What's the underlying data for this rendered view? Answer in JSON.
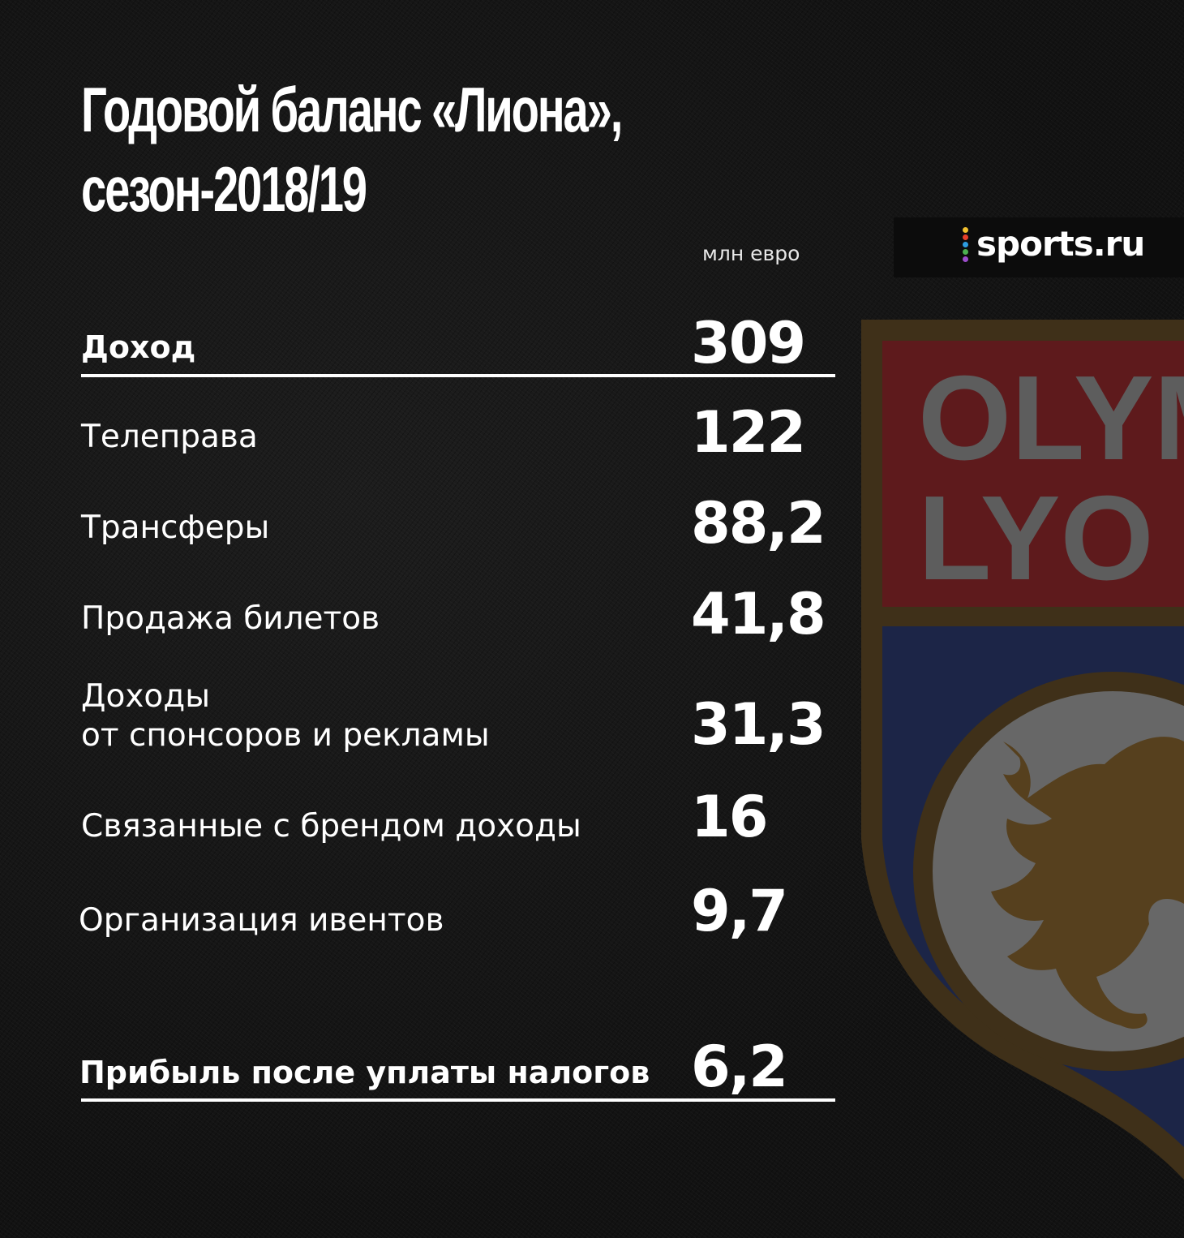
{
  "title": {
    "line1": "Годовой баланс «Лиона»,",
    "line2": "сезон-2018/19"
  },
  "units": "млн евро",
  "brand": {
    "name": "sports.ru",
    "dot_colors": [
      "#f2c12e",
      "#e8402a",
      "#2e9de0",
      "#4caf50",
      "#9c4dcc"
    ]
  },
  "revenue": {
    "label": "Доход",
    "value": "309",
    "items": [
      {
        "label": "Телеправа",
        "value": "122"
      },
      {
        "label": "Трансферы",
        "value": "88,2"
      },
      {
        "label": "Продажа билетов",
        "value": "41,8"
      },
      {
        "label_line1": "Доходы",
        "label_line2": "от спонсоров и рекламы",
        "value": "31,3"
      },
      {
        "label": "Связанные с брендом доходы",
        "value": "16"
      },
      {
        "label": "Организация ивентов",
        "value": "9,7"
      }
    ]
  },
  "profit": {
    "label": "Прибыль после уплаты налогов",
    "value": "6,2"
  },
  "crest": {
    "text_line1": "OLYM",
    "text_line2": "LYO",
    "colors": {
      "border": "#3f3019",
      "top": "#5e1a1c",
      "bottom": "#1c2547",
      "text": "#5d5d5d",
      "disc": "#676767",
      "lion": "#56401e"
    }
  }
}
